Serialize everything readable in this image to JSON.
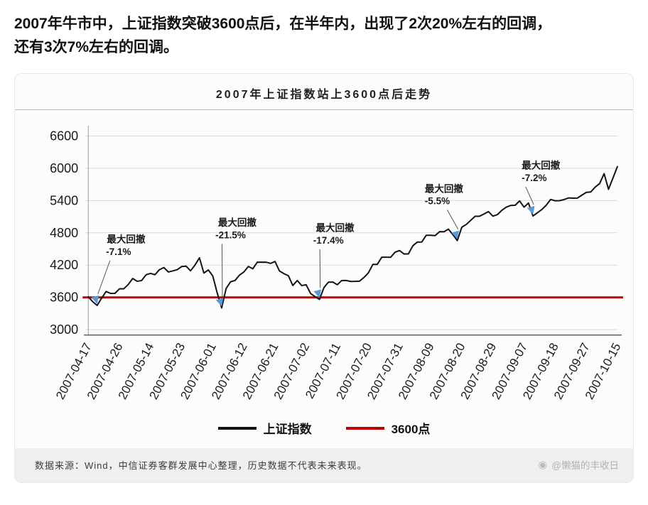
{
  "heading": {
    "line1": "2007年牛市中，上证指数突破3600点后，在半年内，出现了2次20%左右的回调，",
    "line2": "还有3次7%左右的回调。"
  },
  "chart_data": {
    "type": "line",
    "title": "2007年上证指数站上3600点后走势",
    "ylabel": "",
    "xlabel": "",
    "ylim": [
      2900,
      6790
    ],
    "y_ticks": [
      3000,
      3600,
      4200,
      4800,
      5400,
      6000,
      6600
    ],
    "x_tick_labels": [
      "2007-04-17",
      "2007-04-26",
      "2007-05-14",
      "2007-05-23",
      "2007-06-01",
      "2007-06-12",
      "2007-06-21",
      "2007-07-02",
      "2007-07-11",
      "2007-07-20",
      "2007-07-31",
      "2007-08-09",
      "2007-08-20",
      "2007-08-29",
      "2007-09-07",
      "2007-09-18",
      "2007-09-27",
      "2007-10-15"
    ],
    "x_tick_every": 7,
    "series_name": "上证指数",
    "series_color": "#141414",
    "marker_color": "#5b9bd5",
    "grid_color": "#d9d9d9",
    "values": [
      3611,
      3521,
      3450,
      3584,
      3710,
      3674,
      3675,
      3759,
      3760,
      3841,
      3950,
      3899,
      3913,
      4021,
      4046,
      4022,
      4114,
      4155,
      4072,
      4092,
      4114,
      4173,
      4179,
      4094,
      4200,
      4335,
      4053,
      4109,
      4000,
      3680,
      3404,
      3767,
      3890,
      3913,
      4014,
      4072,
      4176,
      4132,
      4253,
      4253,
      4254,
      4233,
      4267,
      4091,
      4042,
      4002,
      3821,
      3914,
      3820,
      3836,
      3671,
      3615,
      3563,
      3781,
      3883,
      3884,
      3836,
      3914,
      3915,
      3896,
      3897,
      3901,
      3971,
      4058,
      4213,
      4214,
      4346,
      4346,
      4345,
      4440,
      4471,
      4407,
      4408,
      4560,
      4628,
      4629,
      4754,
      4754,
      4749,
      4821,
      4820,
      4869,
      4765,
      4656,
      4904,
      4955,
      5032,
      5107,
      5108,
      5150,
      5194,
      5109,
      5138,
      5218,
      5277,
      5310,
      5312,
      5393,
      5277,
      5355,
      5113,
      5172,
      5234,
      5313,
      5421,
      5395,
      5398,
      5418,
      5448,
      5445,
      5446,
      5500,
      5552,
      5560,
      5650,
      5715,
      5900,
      5610,
      5820,
      6030
    ],
    "baseline": {
      "value": 3600,
      "label": "3600点",
      "color": "#c00000"
    },
    "annotations": [
      {
        "label": "最大回撤",
        "pct": "-7.1%",
        "target_index": 2,
        "label_xi": 8.5,
        "label_v": 4620,
        "pct_xi": 6.8,
        "pct_v": 4390
      },
      {
        "label": "最大回撤",
        "pct": "-21.5%",
        "target_index": 30,
        "label_xi": 33.5,
        "label_v": 4930,
        "pct_xi": 32.0,
        "pct_v": 4700
      },
      {
        "label": "最大回撤",
        "pct": "-17.4%",
        "target_index": 52,
        "label_xi": 55.5,
        "label_v": 4830,
        "pct_xi": 54.0,
        "pct_v": 4600
      },
      {
        "label": "最大回撤",
        "pct": "-5.5%",
        "target_index": 83,
        "label_xi": 80.0,
        "label_v": 5560,
        "pct_xi": 78.5,
        "pct_v": 5330
      },
      {
        "label": "最大回撤",
        "pct": "-7.2%",
        "target_index": 100,
        "label_xi": 101.8,
        "label_v": 5990,
        "pct_xi": 100.3,
        "pct_v": 5760
      }
    ]
  },
  "legend": {
    "series_label": "上证指数",
    "baseline_label": "3600点"
  },
  "footer": {
    "source": "数据来源：Wind，中信证券客群发展中心整理，历史数据不代表未来表现。",
    "watermark_icon": "◉",
    "watermark": "@懒猫的丰收日"
  }
}
